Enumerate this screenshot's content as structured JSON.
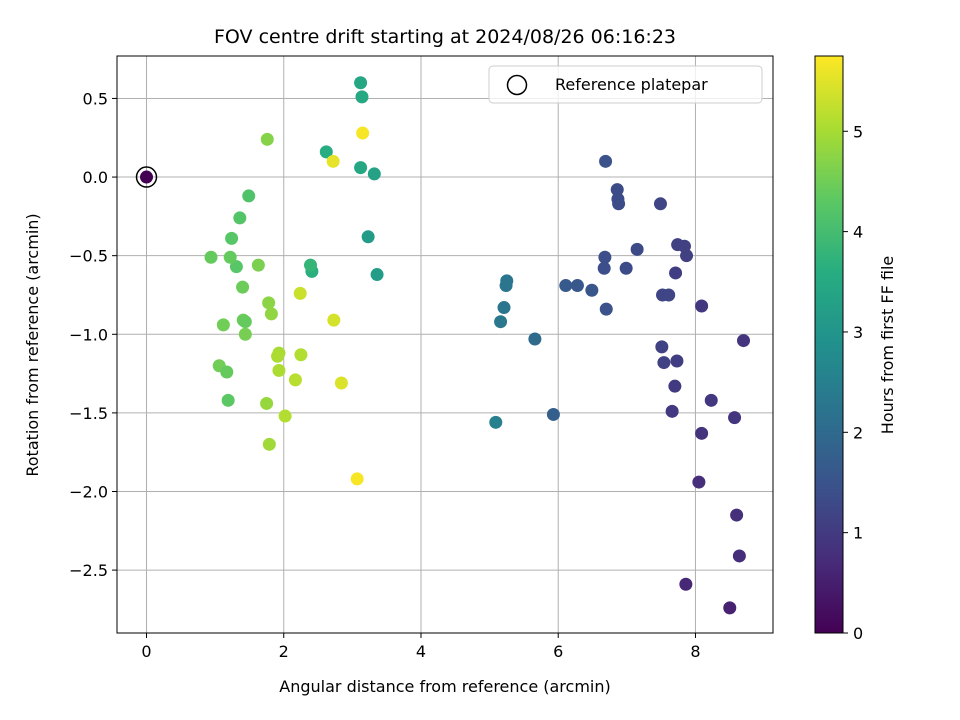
{
  "chart_data": {
    "type": "scatter",
    "title": "FOV centre drift starting at 2024/08/26 06:16:23",
    "xlabel": "Angular distance from reference (arcmin)",
    "ylabel": "Rotation from reference (arcmin)",
    "xlim": [
      -0.43,
      9.13
    ],
    "ylim": [
      -2.9,
      0.77
    ],
    "x_ticks": [
      0,
      2,
      4,
      6,
      8
    ],
    "x_tick_labels": [
      "0",
      "2",
      "4",
      "6",
      "8"
    ],
    "y_ticks": [
      0.5,
      0.0,
      -0.5,
      -1.0,
      -1.5,
      -2.0,
      -2.5
    ],
    "y_tick_labels": [
      "0.5",
      "0.0",
      "−0.5",
      "−1.0",
      "−1.5",
      "−2.0",
      "−2.5"
    ],
    "grid": true,
    "legend": {
      "position": "top-right",
      "label": "Reference platepar"
    },
    "colorbar": {
      "label": "Hours from first FF file",
      "colormap": "viridis",
      "range": [
        0,
        5.75
      ],
      "ticks": [
        0,
        1,
        2,
        3,
        4,
        5
      ],
      "tick_labels": [
        "0",
        "1",
        "2",
        "3",
        "4",
        "5"
      ]
    },
    "reference_point": {
      "x": 0,
      "y": 0
    },
    "series": [
      {
        "points": [
          {
            "x": 0.0,
            "y": 0.0,
            "c": 0.0
          },
          {
            "x": 8.5,
            "y": -2.74,
            "c": 0.55
          },
          {
            "x": 7.86,
            "y": -2.59,
            "c": 0.65
          },
          {
            "x": 8.64,
            "y": -2.41,
            "c": 0.75
          },
          {
            "x": 8.6,
            "y": -2.15,
            "c": 0.8
          },
          {
            "x": 8.05,
            "y": -1.94,
            "c": 0.75
          },
          {
            "x": 8.09,
            "y": -1.63,
            "c": 0.85
          },
          {
            "x": 8.57,
            "y": -1.53,
            "c": 0.9
          },
          {
            "x": 8.23,
            "y": -1.42,
            "c": 0.95
          },
          {
            "x": 7.66,
            "y": -1.49,
            "c": 1.0
          },
          {
            "x": 7.7,
            "y": -1.33,
            "c": 1.0
          },
          {
            "x": 7.73,
            "y": -1.17,
            "c": 1.05
          },
          {
            "x": 8.7,
            "y": -1.04,
            "c": 0.9
          },
          {
            "x": 8.09,
            "y": -0.82,
            "c": 0.95
          },
          {
            "x": 7.71,
            "y": -0.61,
            "c": 1.05
          },
          {
            "x": 7.87,
            "y": -0.5,
            "c": 1.1
          },
          {
            "x": 7.84,
            "y": -0.44,
            "c": 1.1
          },
          {
            "x": 7.74,
            "y": -0.43,
            "c": 1.1
          },
          {
            "x": 7.51,
            "y": -1.08,
            "c": 1.15
          },
          {
            "x": 7.54,
            "y": -1.18,
            "c": 1.15
          },
          {
            "x": 7.52,
            "y": -0.75,
            "c": 1.2
          },
          {
            "x": 7.61,
            "y": -0.75,
            "c": 1.2
          },
          {
            "x": 7.49,
            "y": -0.17,
            "c": 1.2
          },
          {
            "x": 7.15,
            "y": -0.46,
            "c": 1.3
          },
          {
            "x": 6.99,
            "y": -0.58,
            "c": 1.3
          },
          {
            "x": 6.86,
            "y": -0.08,
            "c": 1.35
          },
          {
            "x": 6.87,
            "y": -0.14,
            "c": 1.35
          },
          {
            "x": 6.88,
            "y": -0.17,
            "c": 1.35
          },
          {
            "x": 6.69,
            "y": 0.1,
            "c": 1.45
          },
          {
            "x": 6.68,
            "y": -0.51,
            "c": 1.4
          },
          {
            "x": 6.67,
            "y": -0.58,
            "c": 1.4
          },
          {
            "x": 6.7,
            "y": -0.84,
            "c": 1.45
          },
          {
            "x": 6.49,
            "y": -0.72,
            "c": 1.55
          },
          {
            "x": 6.28,
            "y": -0.69,
            "c": 1.6
          },
          {
            "x": 6.11,
            "y": -0.69,
            "c": 1.65
          },
          {
            "x": 5.93,
            "y": -1.51,
            "c": 1.75
          },
          {
            "x": 5.66,
            "y": -1.03,
            "c": 2.0
          },
          {
            "x": 5.25,
            "y": -0.66,
            "c": 2.25
          },
          {
            "x": 5.24,
            "y": -0.69,
            "c": 2.25
          },
          {
            "x": 5.21,
            "y": -0.83,
            "c": 2.25
          },
          {
            "x": 5.16,
            "y": -0.92,
            "c": 2.3
          },
          {
            "x": 5.09,
            "y": -1.56,
            "c": 2.5
          },
          {
            "x": 3.36,
            "y": -0.62,
            "c": 3.2
          },
          {
            "x": 3.32,
            "y": 0.02,
            "c": 3.3
          },
          {
            "x": 3.23,
            "y": -0.38,
            "c": 3.15
          },
          {
            "x": 3.12,
            "y": 0.6,
            "c": 3.45
          },
          {
            "x": 3.14,
            "y": 0.51,
            "c": 3.5
          },
          {
            "x": 3.12,
            "y": 0.06,
            "c": 3.45
          },
          {
            "x": 2.62,
            "y": 0.16,
            "c": 3.6
          },
          {
            "x": 2.41,
            "y": -0.6,
            "c": 3.65
          },
          {
            "x": 2.39,
            "y": -0.56,
            "c": 3.8
          },
          {
            "x": 1.49,
            "y": -0.12,
            "c": 4.15
          },
          {
            "x": 1.36,
            "y": -0.26,
            "c": 4.2
          },
          {
            "x": 1.24,
            "y": -0.39,
            "c": 4.25
          },
          {
            "x": 1.31,
            "y": -0.57,
            "c": 4.25
          },
          {
            "x": 1.22,
            "y": -0.51,
            "c": 4.4
          },
          {
            "x": 0.94,
            "y": -0.51,
            "c": 4.4
          },
          {
            "x": 1.4,
            "y": -0.7,
            "c": 4.45
          },
          {
            "x": 1.41,
            "y": -0.91,
            "c": 4.45
          },
          {
            "x": 1.44,
            "y": -0.92,
            "c": 4.4
          },
          {
            "x": 1.44,
            "y": -1.0,
            "c": 4.55
          },
          {
            "x": 1.12,
            "y": -0.94,
            "c": 4.5
          },
          {
            "x": 1.06,
            "y": -1.2,
            "c": 4.5
          },
          {
            "x": 1.17,
            "y": -1.24,
            "c": 4.4
          },
          {
            "x": 1.19,
            "y": -1.42,
            "c": 4.3
          },
          {
            "x": 1.63,
            "y": -0.56,
            "c": 4.6
          },
          {
            "x": 1.76,
            "y": 0.24,
            "c": 4.7
          },
          {
            "x": 1.78,
            "y": -0.8,
            "c": 4.75
          },
          {
            "x": 1.82,
            "y": -0.87,
            "c": 4.8
          },
          {
            "x": 1.75,
            "y": -1.44,
            "c": 4.85
          },
          {
            "x": 1.79,
            "y": -1.7,
            "c": 4.95
          },
          {
            "x": 1.93,
            "y": -1.12,
            "c": 5.0
          },
          {
            "x": 1.91,
            "y": -1.14,
            "c": 5.05
          },
          {
            "x": 1.93,
            "y": -1.23,
            "c": 5.05
          },
          {
            "x": 2.02,
            "y": -1.52,
            "c": 5.1
          },
          {
            "x": 2.17,
            "y": -1.29,
            "c": 5.15
          },
          {
            "x": 2.25,
            "y": -1.13,
            "c": 5.1
          },
          {
            "x": 2.24,
            "y": -0.74,
            "c": 5.3
          },
          {
            "x": 2.73,
            "y": -0.91,
            "c": 5.4
          },
          {
            "x": 2.84,
            "y": -1.31,
            "c": 5.45
          },
          {
            "x": 2.72,
            "y": 0.1,
            "c": 5.55
          },
          {
            "x": 3.15,
            "y": 0.28,
            "c": 5.7
          },
          {
            "x": 3.07,
            "y": -1.92,
            "c": 5.7
          }
        ]
      }
    ]
  }
}
